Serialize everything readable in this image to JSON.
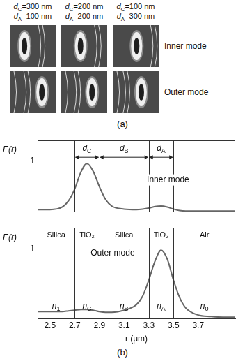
{
  "panel_a": {
    "label": "(a)",
    "columns": [
      {
        "lines": [
          {
            "symbol": "d",
            "subscript": "C",
            "text": "=300 nm"
          },
          {
            "symbol": "d",
            "subscript": "A",
            "text": "=100 nm"
          }
        ]
      },
      {
        "lines": [
          {
            "symbol": "d",
            "subscript": "C",
            "text": "=200 nm"
          },
          {
            "symbol": "d",
            "subscript": "A",
            "text": "=200 nm"
          }
        ]
      },
      {
        "lines": [
          {
            "symbol": "d",
            "subscript": "C",
            "text": "=100 nm"
          },
          {
            "symbol": "d",
            "subscript": "A",
            "text": "=300 nm"
          }
        ]
      }
    ],
    "rows": [
      "Inner mode",
      "Outer mode"
    ]
  },
  "panel_b_label": "(b)",
  "chart_data": [
    {
      "type": "line",
      "annotation": "Inner mode",
      "ylabel": "E(r)",
      "color": "#666666",
      "grid": false,
      "tick_labels": "y",
      "x": [
        2.4,
        2.5,
        2.6,
        2.65,
        2.7,
        2.75,
        2.8,
        2.85,
        2.9,
        2.95,
        3.0,
        3.1,
        3.2,
        3.25,
        3.3,
        3.35,
        3.4,
        3.45,
        3.5,
        3.55,
        3.6,
        3.7,
        3.8,
        3.9,
        4.0
      ],
      "values": [
        0.05,
        0.05,
        0.1,
        0.22,
        0.45,
        0.78,
        0.95,
        0.8,
        0.5,
        0.25,
        0.12,
        0.06,
        0.05,
        0.06,
        0.08,
        0.11,
        0.12,
        0.1,
        0.06,
        0.03,
        0.02,
        0.02,
        0.02,
        0.02,
        0.02
      ],
      "xlim": [
        2.4,
        4.0
      ],
      "xticks": [
        2.5,
        2.7,
        2.9,
        3.1,
        3.3,
        3.5,
        3.7
      ],
      "ylim": [
        0,
        1.4
      ],
      "yticks": [
        1
      ],
      "boundaries": [
        2.7,
        2.9,
        3.3,
        3.5
      ],
      "dimensions": [
        {
          "symbol": "d",
          "subscript": "C"
        },
        {
          "symbol": "d",
          "subscript": "B"
        },
        {
          "symbol": "d",
          "subscript": "A"
        }
      ]
    },
    {
      "type": "line",
      "annotation": "Outer mode",
      "ylabel": "E(r)",
      "xlabel": "r (μm)",
      "color": "#666666",
      "grid": false,
      "x": [
        2.4,
        2.5,
        2.6,
        2.65,
        2.7,
        2.75,
        2.8,
        2.85,
        2.9,
        2.95,
        3.0,
        3.1,
        3.2,
        3.25,
        3.3,
        3.35,
        3.4,
        3.45,
        3.5,
        3.55,
        3.6,
        3.7,
        3.8,
        3.9,
        4.0
      ],
      "values": [
        0.1,
        0.1,
        0.1,
        0.11,
        0.12,
        0.13,
        0.13,
        0.12,
        0.1,
        0.09,
        0.09,
        0.12,
        0.2,
        0.32,
        0.55,
        0.82,
        0.98,
        0.85,
        0.55,
        0.3,
        0.15,
        0.05,
        0.03,
        0.02,
        0.02
      ],
      "xlim": [
        2.4,
        4.0
      ],
      "xticks": [
        2.5,
        2.7,
        2.9,
        3.1,
        3.3,
        3.5,
        3.7
      ],
      "ylim": [
        0,
        1.3
      ],
      "yticks": [
        1
      ],
      "boundaries": [
        2.7,
        2.9,
        3.3,
        3.5
      ],
      "regions": [
        {
          "material": "Silica",
          "index": {
            "symbol": "n",
            "subscript": "1"
          }
        },
        {
          "material": "TiO₂",
          "index": {
            "symbol": "n",
            "subscript": "C"
          }
        },
        {
          "material": "Silica",
          "index": {
            "symbol": "n",
            "subscript": "B"
          }
        },
        {
          "material": "TiO₂",
          "index": {
            "symbol": "n",
            "subscript": "A"
          }
        },
        {
          "material": "Air",
          "index": {
            "symbol": "n",
            "subscript": "0"
          }
        }
      ]
    }
  ]
}
